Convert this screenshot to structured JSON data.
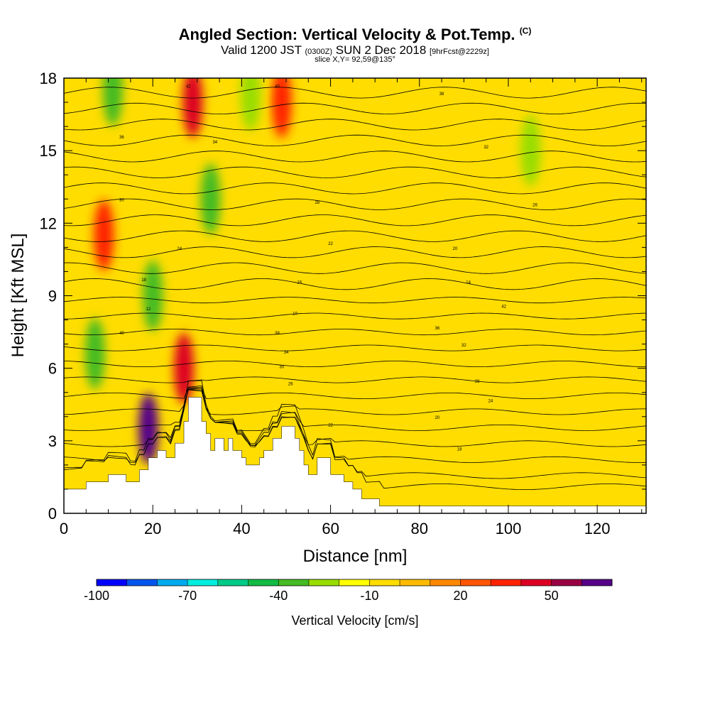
{
  "header": {
    "title": "Angled Section: Vertical Velocity & Pot.Temp.",
    "copyright": "(C)",
    "valid_prefix": "Valid 1200 JST",
    "valid_utc": "(0300Z)",
    "valid_date": "SUN 2 Dec 2018",
    "forecast": "[9hrFcst@2229z]",
    "slice": "slice X,Y= 92,59@135°"
  },
  "chart_data": {
    "type": "heatmap",
    "xlabel": "Distance [nm]",
    "ylabel": "Height [Kft MSL]",
    "xlim": [
      0,
      131
    ],
    "ylim": [
      0,
      18
    ],
    "x_ticks": [
      0,
      20,
      40,
      60,
      80,
      100,
      120
    ],
    "y_ticks": [
      0,
      3,
      6,
      9,
      12,
      15,
      18
    ],
    "grid": false,
    "colorbar": {
      "title": "Vertical Velocity [cm/s]",
      "position": "bottom",
      "tick_labels": [
        "-100",
        "-70",
        "-40",
        "-10",
        "20",
        "50"
      ],
      "tick_values": [
        -100,
        -70,
        -40,
        -10,
        20,
        50
      ],
      "bin_width": 10,
      "colors": [
        "#0000ff",
        "#0055ee",
        "#00aaee",
        "#00eedd",
        "#00cc88",
        "#11bb44",
        "#44bb22",
        "#99dd00",
        "#ffff00",
        "#ffdd00",
        "#ffbb00",
        "#ff8800",
        "#ff5500",
        "#ff2200",
        "#dd0022",
        "#990044",
        "#550088"
      ]
    },
    "terrain_profile": [
      [
        0,
        1
      ],
      [
        5,
        1
      ],
      [
        5,
        1.3
      ],
      [
        10,
        1.3
      ],
      [
        10,
        1.6
      ],
      [
        14,
        1.6
      ],
      [
        14,
        1.3
      ],
      [
        17,
        1.3
      ],
      [
        17,
        1.8
      ],
      [
        19,
        1.8
      ],
      [
        19,
        2.3
      ],
      [
        21,
        2.3
      ],
      [
        21,
        2.6
      ],
      [
        23,
        2.6
      ],
      [
        23,
        2.3
      ],
      [
        25,
        2.3
      ],
      [
        25,
        2.9
      ],
      [
        27,
        2.9
      ],
      [
        27,
        3.8
      ],
      [
        28,
        3.8
      ],
      [
        28,
        4.8
      ],
      [
        31,
        4.8
      ],
      [
        31,
        3.8
      ],
      [
        32,
        3.8
      ],
      [
        32,
        3.3
      ],
      [
        33,
        3.3
      ],
      [
        33,
        2.6
      ],
      [
        34,
        2.6
      ],
      [
        34,
        3.1
      ],
      [
        36,
        3.1
      ],
      [
        36,
        2.6
      ],
      [
        37,
        2.6
      ],
      [
        37,
        3.1
      ],
      [
        38,
        3.1
      ],
      [
        38,
        2.6
      ],
      [
        40,
        2.6
      ],
      [
        40,
        2.3
      ],
      [
        41,
        2.3
      ],
      [
        41,
        2
      ],
      [
        44,
        2
      ],
      [
        44,
        2.3
      ],
      [
        45,
        2.3
      ],
      [
        45,
        2.6
      ],
      [
        47,
        2.6
      ],
      [
        47,
        3.1
      ],
      [
        49,
        3.1
      ],
      [
        49,
        3.6
      ],
      [
        52,
        3.6
      ],
      [
        52,
        3.1
      ],
      [
        53,
        3.1
      ],
      [
        53,
        2.6
      ],
      [
        54,
        2.6
      ],
      [
        54,
        2
      ],
      [
        55,
        2
      ],
      [
        55,
        1.6
      ],
      [
        57,
        1.6
      ],
      [
        57,
        2.3
      ],
      [
        60,
        2.3
      ],
      [
        60,
        1.6
      ],
      [
        63,
        1.6
      ],
      [
        63,
        1.3
      ],
      [
        65,
        1.3
      ],
      [
        65,
        1
      ],
      [
        67,
        1
      ],
      [
        67,
        0.6
      ],
      [
        71,
        0.6
      ],
      [
        71,
        0.3
      ],
      [
        131,
        0.3
      ],
      [
        131,
        0
      ],
      [
        0,
        0
      ]
    ],
    "theta_contour_labels": [
      "42",
      "40",
      "38",
      "36",
      "34",
      "32",
      "30",
      "28",
      "26",
      "24",
      "22",
      "20",
      "18",
      "16",
      "14",
      "12",
      "10"
    ],
    "features": [
      {
        "name": "updraft",
        "x": 9,
        "y": 11.5,
        "value": 35
      },
      {
        "name": "updraft",
        "x": 29,
        "y": 17,
        "value": 40
      },
      {
        "name": "updraft",
        "x": 49,
        "y": 17,
        "value": 35
      },
      {
        "name": "updraft",
        "x": 19,
        "y": 3.5,
        "value": 60
      },
      {
        "name": "updraft",
        "x": 27,
        "y": 6,
        "value": 40
      },
      {
        "name": "downdraft",
        "x": 7,
        "y": 6.6,
        "value": -40
      },
      {
        "name": "downdraft",
        "x": 33,
        "y": 13,
        "value": -40
      },
      {
        "name": "downdraft",
        "x": 20,
        "y": 9,
        "value": -35
      },
      {
        "name": "downdraft",
        "x": 11,
        "y": 17.5,
        "value": -40
      },
      {
        "name": "downdraft",
        "x": 42,
        "y": 17.3,
        "value": -30
      },
      {
        "name": "downdraft",
        "x": 105,
        "y": 15,
        "value": -25
      }
    ]
  }
}
